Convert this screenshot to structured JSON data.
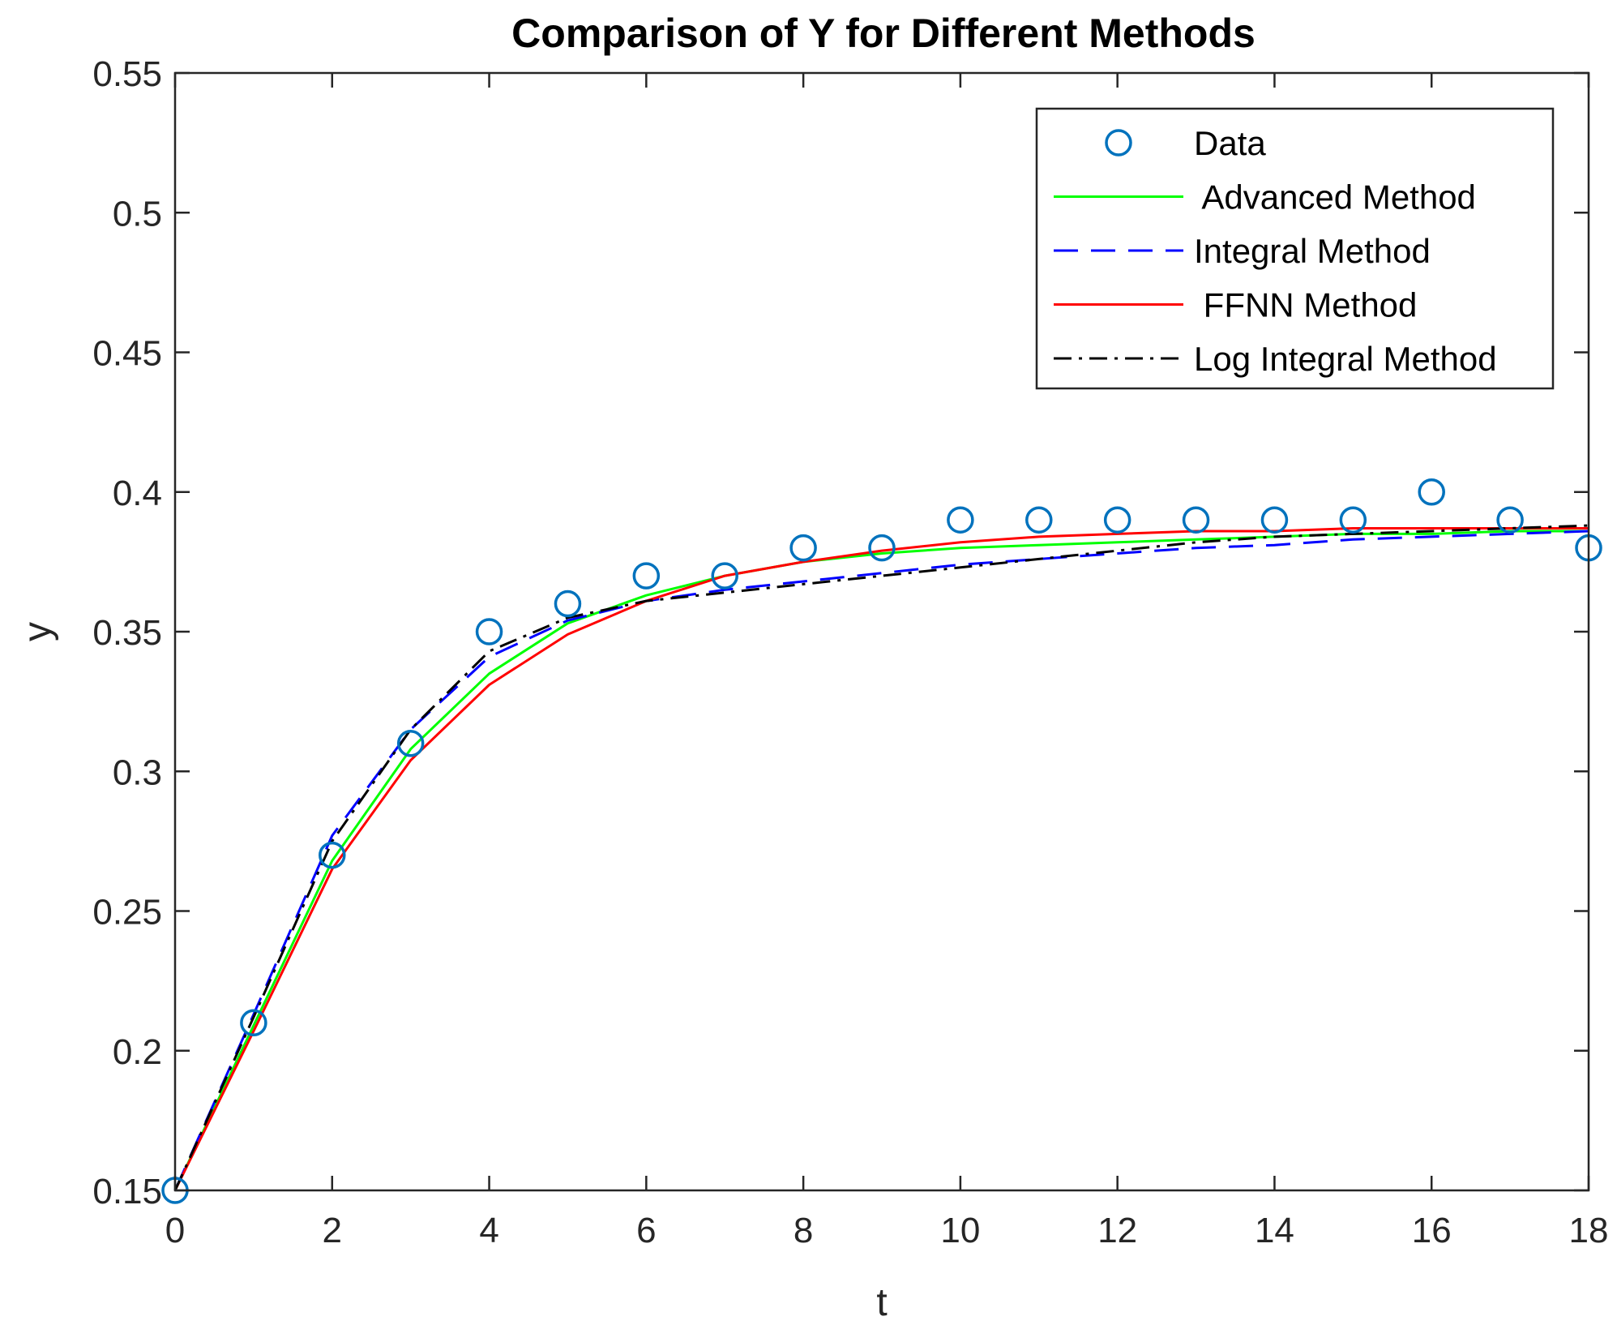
{
  "chart_data": {
    "type": "line",
    "title": "Comparison of Y for Different Methods",
    "xlabel": "t",
    "ylabel": "y",
    "xlim": [
      0,
      18
    ],
    "ylim": [
      0.15,
      0.55
    ],
    "xticks": [
      "0",
      "2",
      "4",
      "6",
      "8",
      "10",
      "12",
      "14",
      "16",
      "18"
    ],
    "yticks": [
      "0.15",
      "0.2",
      "0.25",
      "0.3",
      "0.35",
      "0.4",
      "0.45",
      "0.5",
      "0.55"
    ],
    "grid": false,
    "legend_position": "top-right",
    "x": [
      0,
      1,
      2,
      3,
      4,
      5,
      6,
      7,
      8,
      9,
      10,
      11,
      12,
      13,
      14,
      15,
      16,
      17,
      18
    ],
    "series": [
      {
        "name": "Data",
        "style": "markers",
        "color": "#0072BD",
        "values": [
          0.15,
          0.21,
          0.27,
          0.31,
          0.35,
          0.36,
          0.37,
          0.37,
          0.38,
          0.38,
          0.39,
          0.39,
          0.39,
          0.39,
          0.39,
          0.39,
          0.4,
          0.39,
          0.38
        ]
      },
      {
        "name": " Advanced Method",
        "style": "solid",
        "color": "#00FF00",
        "values": [
          0.15,
          0.209,
          0.268,
          0.308,
          0.335,
          0.353,
          0.363,
          0.37,
          0.375,
          0.378,
          0.38,
          0.381,
          0.382,
          0.383,
          0.384,
          0.385,
          0.385,
          0.386,
          0.386
        ]
      },
      {
        "name": "Integral Method",
        "style": "dashed",
        "color": "#0000FF",
        "values": [
          0.15,
          0.213,
          0.277,
          0.315,
          0.341,
          0.354,
          0.361,
          0.365,
          0.368,
          0.371,
          0.374,
          0.376,
          0.378,
          0.38,
          0.381,
          0.383,
          0.384,
          0.385,
          0.386
        ]
      },
      {
        "name": " FFNN Method",
        "style": "solid",
        "color": "#FF0000",
        "values": [
          0.15,
          0.207,
          0.265,
          0.304,
          0.331,
          0.349,
          0.361,
          0.37,
          0.375,
          0.379,
          0.382,
          0.384,
          0.385,
          0.386,
          0.386,
          0.387,
          0.387,
          0.387,
          0.387
        ]
      },
      {
        "name": "Log Integral Method",
        "style": "dashdot",
        "color": "#000000",
        "values": [
          0.15,
          0.212,
          0.275,
          0.315,
          0.343,
          0.355,
          0.361,
          0.364,
          0.367,
          0.37,
          0.373,
          0.376,
          0.379,
          0.382,
          0.384,
          0.385,
          0.386,
          0.387,
          0.388
        ]
      }
    ]
  }
}
